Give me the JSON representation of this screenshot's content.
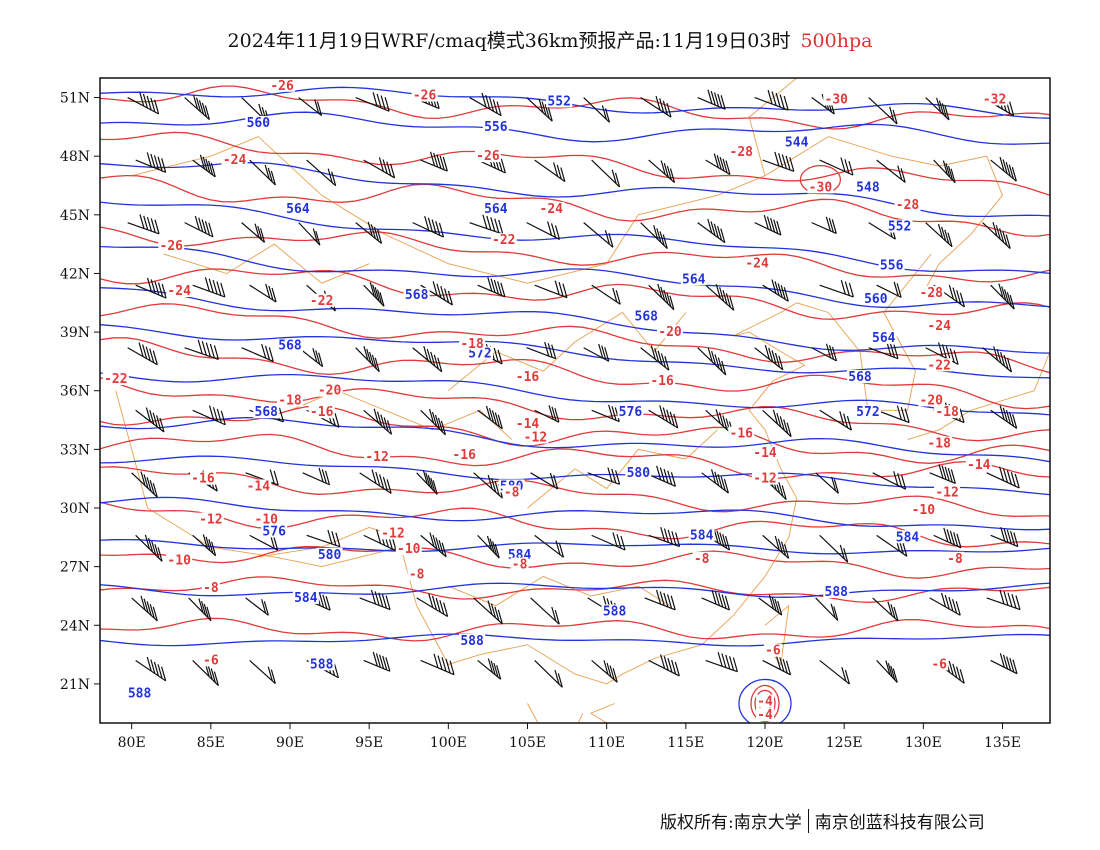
{
  "title": {
    "main": "2024年11月19日WRF/cmaq模式36km预报产品:11月19日03时",
    "level": "500hpa"
  },
  "copyright": {
    "left": "版权所有:南京大学",
    "right": "南京创蓝科技有限公司"
  },
  "axes": {
    "x_ticks": [
      "80E",
      "85E",
      "90E",
      "95E",
      "100E",
      "105E",
      "110E",
      "115E",
      "120E",
      "125E",
      "130E",
      "135E"
    ],
    "x_values": [
      80,
      85,
      90,
      95,
      100,
      105,
      110,
      115,
      120,
      125,
      130,
      135
    ],
    "y_ticks": [
      "51N",
      "48N",
      "45N",
      "42N",
      "39N",
      "36N",
      "33N",
      "30N",
      "27N",
      "24N",
      "21N"
    ],
    "y_values": [
      51,
      48,
      45,
      42,
      39,
      36,
      33,
      30,
      27,
      24,
      21
    ],
    "lon_range": [
      78,
      138
    ],
    "lat_range": [
      19,
      52
    ]
  },
  "colors": {
    "height_contour": "#2233dd",
    "temperature_contour": "#e03a3a",
    "boundaries": "#e8a050",
    "wind_barb": "#111111"
  },
  "height_labels": [
    {
      "text": "552",
      "lon": 107,
      "lat": 50.7
    },
    {
      "text": "556",
      "lon": 103,
      "lat": 49.4
    },
    {
      "text": "560",
      "lon": 88,
      "lat": 49.6
    },
    {
      "text": "544",
      "lon": 122,
      "lat": 48.6
    },
    {
      "text": "548",
      "lon": 126.5,
      "lat": 46.3
    },
    {
      "text": "564",
      "lon": 90.5,
      "lat": 45.2
    },
    {
      "text": "564",
      "lon": 103,
      "lat": 45.2
    },
    {
      "text": "552",
      "lon": 128.5,
      "lat": 44.3
    },
    {
      "text": "556",
      "lon": 128,
      "lat": 42.3
    },
    {
      "text": "560",
      "lon": 127,
      "lat": 40.6
    },
    {
      "text": "564",
      "lon": 115.5,
      "lat": 41.6
    },
    {
      "text": "568",
      "lon": 98,
      "lat": 40.8
    },
    {
      "text": "568",
      "lon": 90,
      "lat": 38.2
    },
    {
      "text": "568",
      "lon": 112.5,
      "lat": 39.7
    },
    {
      "text": "572",
      "lon": 102,
      "lat": 37.8
    },
    {
      "text": "564",
      "lon": 127.5,
      "lat": 38.6
    },
    {
      "text": "568",
      "lon": 126,
      "lat": 36.6
    },
    {
      "text": "568",
      "lon": 88.5,
      "lat": 34.8
    },
    {
      "text": "576",
      "lon": 111.5,
      "lat": 34.8
    },
    {
      "text": "572",
      "lon": 126.5,
      "lat": 34.8
    },
    {
      "text": "580",
      "lon": 112,
      "lat": 31.7
    },
    {
      "text": "580",
      "lon": 104,
      "lat": 31.0
    },
    {
      "text": "576",
      "lon": 89,
      "lat": 28.7
    },
    {
      "text": "580",
      "lon": 92.5,
      "lat": 27.5
    },
    {
      "text": "584",
      "lon": 104.5,
      "lat": 27.5
    },
    {
      "text": "584",
      "lon": 116,
      "lat": 28.5
    },
    {
      "text": "584",
      "lon": 129,
      "lat": 28.4
    },
    {
      "text": "584",
      "lon": 91,
      "lat": 25.3
    },
    {
      "text": "588",
      "lon": 124.5,
      "lat": 25.6
    },
    {
      "text": "588",
      "lon": 110.5,
      "lat": 24.6
    },
    {
      "text": "588",
      "lon": 101.5,
      "lat": 23.1
    },
    {
      "text": "588",
      "lon": 92,
      "lat": 21.9
    },
    {
      "text": "588",
      "lon": 80.5,
      "lat": 20.4
    }
  ],
  "temperature_labels": [
    {
      "text": "-26",
      "lon": 89.5,
      "lat": 51.5
    },
    {
      "text": "-26",
      "lon": 98.5,
      "lat": 51.0
    },
    {
      "text": "-30",
      "lon": 124.5,
      "lat": 50.8
    },
    {
      "text": "-32",
      "lon": 134.5,
      "lat": 50.8
    },
    {
      "text": "-28",
      "lon": 118.5,
      "lat": 48.1
    },
    {
      "text": "-26",
      "lon": 102.5,
      "lat": 47.9
    },
    {
      "text": "-24",
      "lon": 86.5,
      "lat": 47.7
    },
    {
      "text": "-30",
      "lon": 123.5,
      "lat": 46.3
    },
    {
      "text": "-24",
      "lon": 106.5,
      "lat": 45.2
    },
    {
      "text": "-28",
      "lon": 129,
      "lat": 45.4
    },
    {
      "text": "-26",
      "lon": 82.5,
      "lat": 43.3
    },
    {
      "text": "-22",
      "lon": 103.5,
      "lat": 43.6
    },
    {
      "text": "-24",
      "lon": 119.5,
      "lat": 42.4
    },
    {
      "text": "-28",
      "lon": 130.5,
      "lat": 40.9
    },
    {
      "text": "-24",
      "lon": 83,
      "lat": 41.0
    },
    {
      "text": "-22",
      "lon": 92,
      "lat": 40.5
    },
    {
      "text": "-20",
      "lon": 114,
      "lat": 38.9
    },
    {
      "text": "-24",
      "lon": 131,
      "lat": 39.2
    },
    {
      "text": "-18",
      "lon": 101.5,
      "lat": 38.3
    },
    {
      "text": "-22",
      "lon": 131,
      "lat": 37.2
    },
    {
      "text": "-16",
      "lon": 113.5,
      "lat": 36.4
    },
    {
      "text": "-16",
      "lon": 105,
      "lat": 36.6
    },
    {
      "text": "-22",
      "lon": 79,
      "lat": 36.5
    },
    {
      "text": "-20",
      "lon": 92.5,
      "lat": 35.9
    },
    {
      "text": "-18",
      "lon": 90,
      "lat": 35.4
    },
    {
      "text": "-16",
      "lon": 92,
      "lat": 34.8
    },
    {
      "text": "-20",
      "lon": 130.5,
      "lat": 35.4
    },
    {
      "text": "-18",
      "lon": 131.5,
      "lat": 34.8
    },
    {
      "text": "-14",
      "lon": 105,
      "lat": 34.2
    },
    {
      "text": "-12",
      "lon": 105.5,
      "lat": 33.5
    },
    {
      "text": "-16",
      "lon": 118.5,
      "lat": 33.7
    },
    {
      "text": "-18",
      "lon": 131,
      "lat": 33.2
    },
    {
      "text": "-14",
      "lon": 120,
      "lat": 32.7
    },
    {
      "text": "-12",
      "lon": 95.5,
      "lat": 32.5
    },
    {
      "text": "-16",
      "lon": 101,
      "lat": 32.6
    },
    {
      "text": "-14",
      "lon": 133.5,
      "lat": 32.1
    },
    {
      "text": "-16",
      "lon": 84.5,
      "lat": 31.4
    },
    {
      "text": "-14",
      "lon": 88,
      "lat": 31.0
    },
    {
      "text": "-12",
      "lon": 120,
      "lat": 31.4
    },
    {
      "text": "-8",
      "lon": 104,
      "lat": 30.7
    },
    {
      "text": "-12",
      "lon": 131.5,
      "lat": 30.7
    },
    {
      "text": "-10",
      "lon": 130,
      "lat": 29.8
    },
    {
      "text": "-12",
      "lon": 85,
      "lat": 29.3
    },
    {
      "text": "-10",
      "lon": 88.5,
      "lat": 29.3
    },
    {
      "text": "-12",
      "lon": 96.5,
      "lat": 28.6
    },
    {
      "text": "-10",
      "lon": 97.5,
      "lat": 27.8
    },
    {
      "text": "-10",
      "lon": 83,
      "lat": 27.2
    },
    {
      "text": "-8",
      "lon": 104.5,
      "lat": 27.0
    },
    {
      "text": "-8",
      "lon": 116,
      "lat": 27.3
    },
    {
      "text": "-8",
      "lon": 132,
      "lat": 27.3
    },
    {
      "text": "-8",
      "lon": 98,
      "lat": 26.5
    },
    {
      "text": "-8",
      "lon": 85,
      "lat": 25.8
    },
    {
      "text": "-6",
      "lon": 120.5,
      "lat": 22.6
    },
    {
      "text": "-6",
      "lon": 85,
      "lat": 22.1
    },
    {
      "text": "-6",
      "lon": 131,
      "lat": 21.9
    },
    {
      "text": "-4",
      "lon": 120,
      "lat": 20.0
    },
    {
      "text": "-4",
      "lon": 120,
      "lat": 19.3
    }
  ]
}
